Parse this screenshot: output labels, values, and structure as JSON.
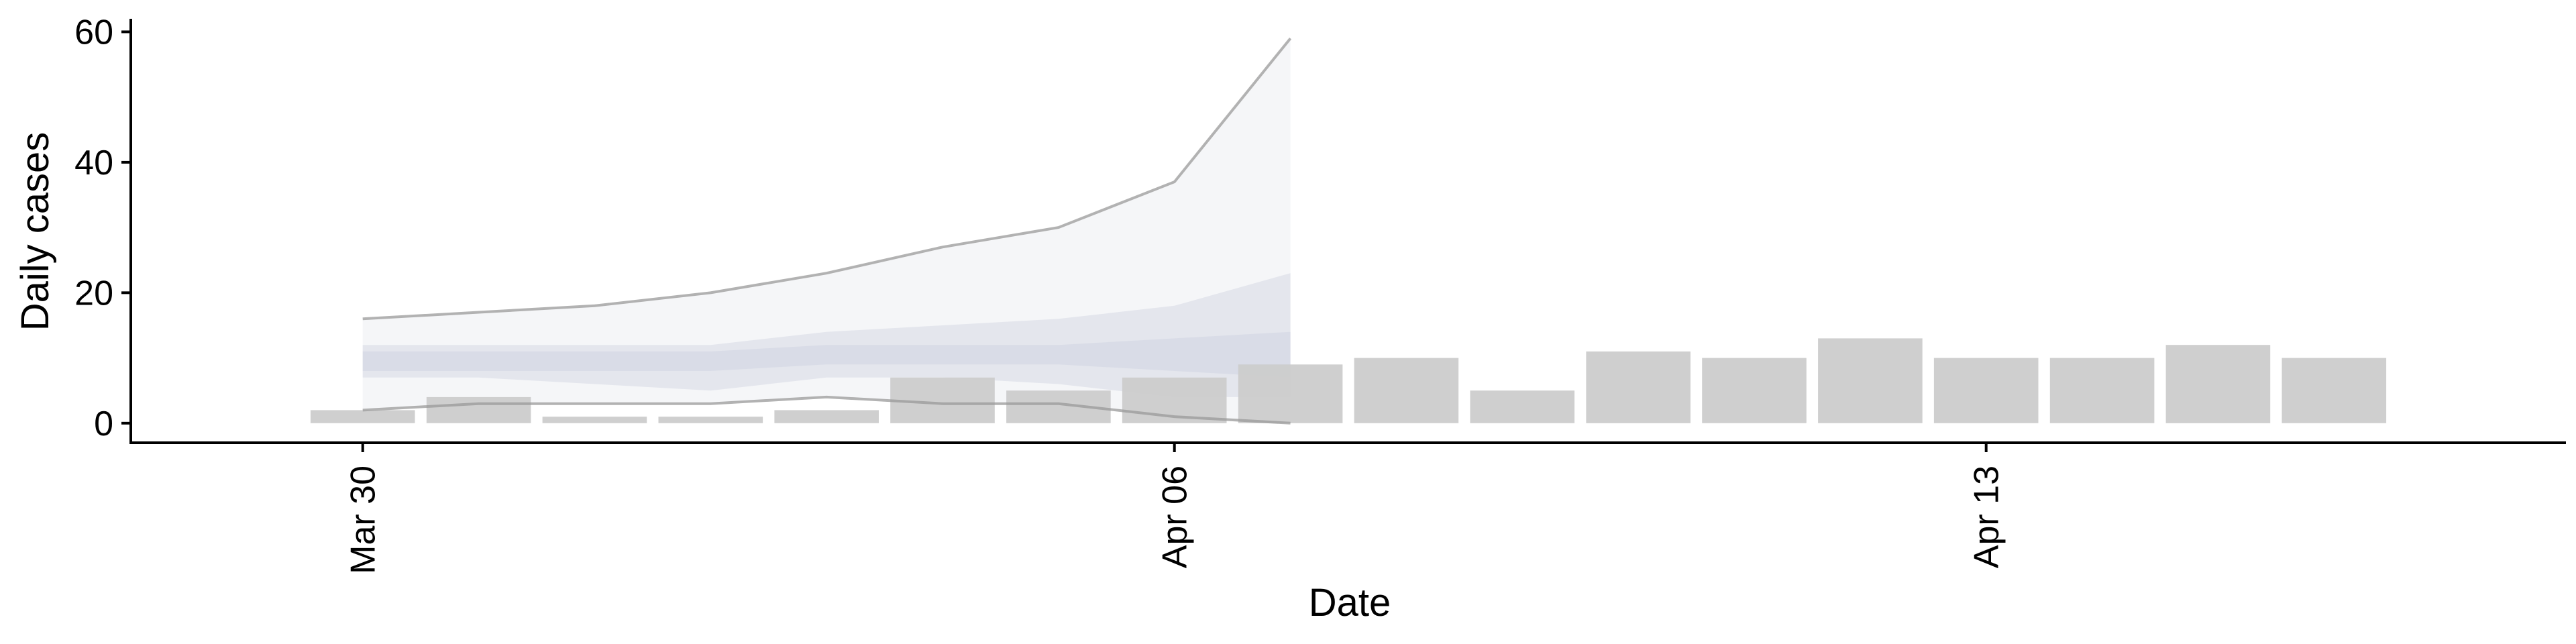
{
  "chart_data": {
    "type": "bar",
    "xlabel": "Date",
    "ylabel": "Daily cases",
    "ylim": [
      -3,
      62
    ],
    "yticks": [
      0,
      20,
      40,
      60
    ],
    "xticks": [
      {
        "date": "2020-03-30",
        "label": "Mar 30"
      },
      {
        "date": "2020-04-06",
        "label": "Apr 06"
      },
      {
        "date": "2020-04-13",
        "label": "Apr 13"
      }
    ],
    "xlim": [
      "2020-03-28",
      "2020-04-18"
    ],
    "bars": [
      {
        "date": "2020-03-30",
        "value": 2
      },
      {
        "date": "2020-03-31",
        "value": 4
      },
      {
        "date": "2020-04-01",
        "value": 1
      },
      {
        "date": "2020-04-02",
        "value": 1
      },
      {
        "date": "2020-04-03",
        "value": 2
      },
      {
        "date": "2020-04-04",
        "value": 7
      },
      {
        "date": "2020-04-05",
        "value": 5
      },
      {
        "date": "2020-04-06",
        "value": 7
      },
      {
        "date": "2020-04-07",
        "value": 9
      },
      {
        "date": "2020-04-08",
        "value": 10
      },
      {
        "date": "2020-04-09",
        "value": 5
      },
      {
        "date": "2020-04-10",
        "value": 11
      },
      {
        "date": "2020-04-11",
        "value": 10
      },
      {
        "date": "2020-04-12",
        "value": 13
      },
      {
        "date": "2020-04-13",
        "value": 10
      },
      {
        "date": "2020-04-14",
        "value": 10
      },
      {
        "date": "2020-04-15",
        "value": 12
      },
      {
        "date": "2020-04-16",
        "value": 10
      }
    ],
    "estimate_bands": {
      "dates": [
        "2020-03-30",
        "2020-03-31",
        "2020-04-01",
        "2020-04-02",
        "2020-04-03",
        "2020-04-04",
        "2020-04-05",
        "2020-04-06",
        "2020-04-07"
      ],
      "outer_lower": [
        2,
        3,
        3,
        3,
        4,
        3,
        3,
        1,
        0
      ],
      "outer_upper": [
        16,
        17,
        18,
        20,
        23,
        27,
        30,
        37,
        59
      ],
      "mid_lower": [
        7,
        7,
        6,
        5,
        7,
        7,
        6,
        4,
        4
      ],
      "mid_upper": [
        12,
        12,
        12,
        12,
        14,
        15,
        16,
        18,
        23
      ],
      "inner_lower": [
        8,
        8,
        8,
        8,
        9,
        9,
        9,
        8,
        7
      ],
      "inner_upper": [
        11,
        11,
        11,
        11,
        12,
        12,
        12,
        13,
        14
      ]
    },
    "colors": {
      "bars": "#cccccc",
      "band_outer": "#eceef3",
      "band_mid": "#dde0ea",
      "band_inner": "#d2d6e2",
      "bound_lines": "#999999"
    },
    "grid": false,
    "legend": "none"
  }
}
